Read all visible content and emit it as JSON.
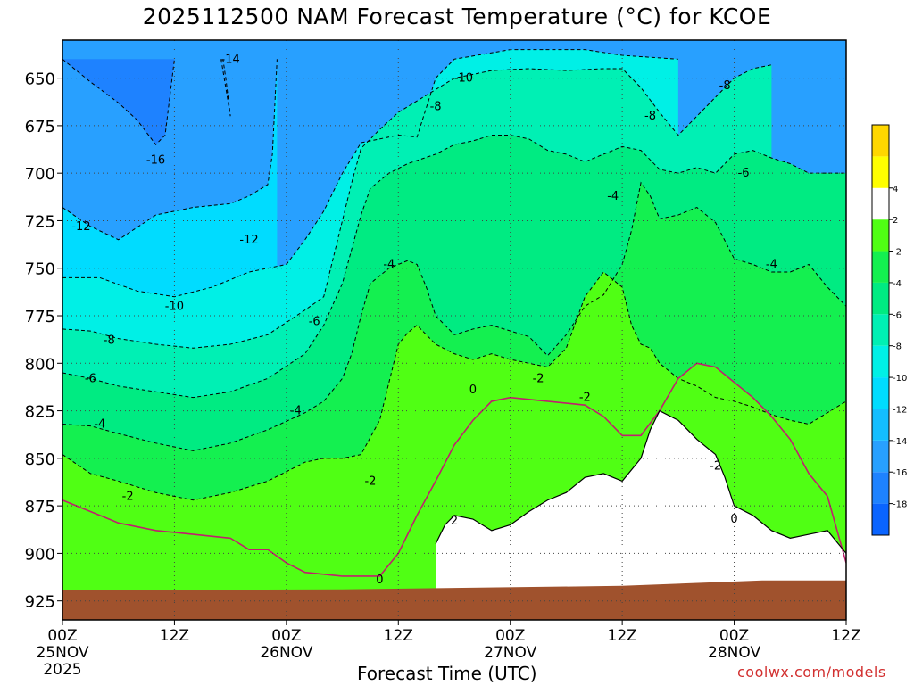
{
  "title": "2025112500 NAM Forecast Temperature (°C) for KCOE",
  "xlabel": "Forecast Time (UTC)",
  "credit": "coolwx.com/models",
  "chart_data": {
    "type": "contour",
    "title": "2025112500 NAM Forecast Temperature (°C) for KCOE",
    "xlabel": "Forecast Time (UTC)",
    "ylabel": "",
    "x_range_hours": [
      0,
      84
    ],
    "y_range_hPa": [
      630,
      935
    ],
    "y_axis_inverted": true,
    "grid": "dotted",
    "x_ticks": [
      {
        "hour": 0,
        "lines": [
          "00Z",
          "25NOV",
          "2025"
        ]
      },
      {
        "hour": 12,
        "lines": [
          "12Z"
        ]
      },
      {
        "hour": 24,
        "lines": [
          "00Z",
          "26NOV"
        ]
      },
      {
        "hour": 36,
        "lines": [
          "12Z"
        ]
      },
      {
        "hour": 48,
        "lines": [
          "00Z",
          "27NOV"
        ]
      },
      {
        "hour": 60,
        "lines": [
          "12Z"
        ]
      },
      {
        "hour": 72,
        "lines": [
          "00Z",
          "28NOV"
        ]
      },
      {
        "hour": 84,
        "lines": [
          "12Z"
        ]
      }
    ],
    "y_ticks": [
      650,
      675,
      700,
      725,
      750,
      775,
      800,
      825,
      850,
      875,
      900,
      925
    ],
    "colorbar": {
      "placement": "right",
      "levels": [
        -20,
        -18,
        -16,
        -14,
        -12,
        -10,
        -8,
        -6,
        -4,
        -2,
        2,
        4,
        6
      ],
      "colors": [
        "#0a64ff",
        "#1e82ff",
        "#28a0ff",
        "#14beff",
        "#00dcff",
        "#00f0e6",
        "#00f0b4",
        "#00eb82",
        "#14f050",
        "#50ff14",
        "#ffffff",
        "#ffff00",
        "#ffd700"
      ],
      "tick_labels": [
        "-18",
        "-16",
        "-14",
        "-12",
        "-10",
        "-8",
        "-6",
        "-4",
        "-2",
        "2",
        "4"
      ]
    },
    "ground_color": "#a0522d",
    "contours": [
      {
        "value": -14,
        "points": [
          [
            17,
            640
          ],
          [
            17.5,
            655
          ],
          [
            18,
            670
          ],
          [
            17.5,
            650
          ],
          [
            17.2,
            640
          ]
        ]
      },
      {
        "value": -16,
        "points": [
          [
            0,
            640
          ],
          [
            3,
            652
          ],
          [
            6,
            663
          ],
          [
            8,
            672
          ],
          [
            10,
            685
          ],
          [
            11,
            680
          ],
          [
            11.5,
            660
          ],
          [
            12,
            640
          ]
        ]
      },
      {
        "value": -12,
        "points": [
          [
            0,
            718
          ],
          [
            3,
            728
          ],
          [
            6,
            735
          ],
          [
            10,
            722
          ],
          [
            14,
            718
          ],
          [
            18,
            716
          ],
          [
            20,
            712
          ],
          [
            22,
            706
          ],
          [
            22.5,
            690
          ],
          [
            23,
            640
          ]
        ]
      },
      {
        "value": -10,
        "points": [
          [
            0,
            755
          ],
          [
            4,
            755
          ],
          [
            8,
            762
          ],
          [
            12,
            765
          ],
          [
            16,
            760
          ],
          [
            20,
            752
          ],
          [
            24,
            748
          ],
          [
            26,
            735
          ],
          [
            28,
            720
          ],
          [
            30,
            700
          ],
          [
            32,
            684
          ],
          [
            36,
            680
          ],
          [
            38,
            681
          ],
          [
            40,
            650
          ],
          [
            42,
            640
          ],
          [
            48,
            635
          ],
          [
            56,
            635
          ],
          [
            60,
            638
          ],
          [
            66,
            640
          ]
        ]
      },
      {
        "value": -8,
        "points": [
          [
            0,
            782
          ],
          [
            3,
            783
          ],
          [
            6,
            787
          ],
          [
            10,
            790
          ],
          [
            14,
            792
          ],
          [
            18,
            790
          ],
          [
            22,
            785
          ],
          [
            26,
            772
          ],
          [
            28,
            765
          ],
          [
            29,
            745
          ],
          [
            30,
            725
          ],
          [
            31,
            705
          ],
          [
            32,
            687
          ],
          [
            34,
            677
          ],
          [
            36,
            668
          ],
          [
            38,
            662
          ],
          [
            40,
            656
          ],
          [
            42,
            650
          ],
          [
            44,
            648
          ],
          [
            46,
            646
          ],
          [
            50,
            645
          ],
          [
            54,
            646
          ],
          [
            58,
            645
          ],
          [
            60,
            645
          ],
          [
            62,
            655
          ],
          [
            64,
            668
          ],
          [
            66,
            680
          ],
          [
            68,
            670
          ],
          [
            70,
            660
          ],
          [
            72,
            650
          ],
          [
            74,
            645
          ],
          [
            76,
            643
          ]
        ]
      },
      {
        "value": -6,
        "points": [
          [
            0,
            805
          ],
          [
            3,
            808
          ],
          [
            6,
            812
          ],
          [
            10,
            815
          ],
          [
            14,
            818
          ],
          [
            18,
            815
          ],
          [
            22,
            808
          ],
          [
            26,
            795
          ],
          [
            28,
            780
          ],
          [
            30,
            758
          ],
          [
            31,
            740
          ],
          [
            32,
            722
          ],
          [
            33,
            708
          ],
          [
            35,
            700
          ],
          [
            37,
            695
          ],
          [
            40,
            690
          ],
          [
            42,
            685
          ],
          [
            44,
            683
          ],
          [
            46,
            680
          ],
          [
            48,
            680
          ],
          [
            50,
            682
          ],
          [
            52,
            688
          ],
          [
            54,
            690
          ],
          [
            56,
            694
          ],
          [
            58,
            690
          ],
          [
            60,
            686
          ],
          [
            62,
            688
          ],
          [
            64,
            698
          ],
          [
            66,
            700
          ],
          [
            68,
            697
          ],
          [
            70,
            700
          ],
          [
            72,
            690
          ],
          [
            74,
            688
          ],
          [
            76,
            692
          ],
          [
            78,
            695
          ],
          [
            80,
            700
          ],
          [
            82,
            700
          ],
          [
            84,
            700
          ]
        ]
      },
      {
        "value": -4,
        "points": [
          [
            0,
            832
          ],
          [
            3,
            833
          ],
          [
            6,
            837
          ],
          [
            10,
            842
          ],
          [
            14,
            846
          ],
          [
            18,
            842
          ],
          [
            22,
            835
          ],
          [
            26,
            826
          ],
          [
            28,
            820
          ],
          [
            30,
            808
          ],
          [
            31,
            795
          ],
          [
            32,
            775
          ],
          [
            33,
            758
          ],
          [
            35,
            750
          ],
          [
            37,
            746
          ],
          [
            38,
            748
          ],
          [
            39,
            760
          ],
          [
            40,
            775
          ],
          [
            42,
            785
          ],
          [
            44,
            782
          ],
          [
            46,
            780
          ],
          [
            48,
            783
          ],
          [
            50,
            786
          ],
          [
            52,
            796
          ],
          [
            54,
            785
          ],
          [
            56,
            770
          ],
          [
            58,
            764
          ],
          [
            60,
            748
          ],
          [
            61,
            730
          ],
          [
            62,
            705
          ],
          [
            63,
            712
          ],
          [
            64,
            724
          ],
          [
            66,
            722
          ],
          [
            68,
            718
          ],
          [
            70,
            726
          ],
          [
            72,
            745
          ],
          [
            74,
            748
          ],
          [
            76,
            752
          ],
          [
            78,
            752
          ],
          [
            80,
            748
          ],
          [
            82,
            760
          ],
          [
            84,
            770
          ]
        ]
      },
      {
        "value": -2,
        "points": [
          [
            0,
            848
          ],
          [
            3,
            858
          ],
          [
            6,
            862
          ],
          [
            10,
            868
          ],
          [
            14,
            872
          ],
          [
            18,
            868
          ],
          [
            22,
            862
          ],
          [
            26,
            852
          ],
          [
            28,
            850
          ],
          [
            30,
            850
          ],
          [
            32,
            848
          ],
          [
            34,
            830
          ],
          [
            35,
            810
          ],
          [
            36,
            790
          ],
          [
            37,
            784
          ],
          [
            38,
            780
          ],
          [
            40,
            790
          ],
          [
            42,
            795
          ],
          [
            44,
            798
          ],
          [
            46,
            795
          ],
          [
            48,
            798
          ],
          [
            50,
            800
          ],
          [
            52,
            802
          ],
          [
            54,
            792
          ],
          [
            56,
            765
          ],
          [
            58,
            752
          ],
          [
            60,
            760
          ],
          [
            61,
            780
          ],
          [
            62,
            790
          ],
          [
            63,
            792
          ],
          [
            64,
            800
          ],
          [
            66,
            808
          ],
          [
            68,
            812
          ],
          [
            70,
            818
          ],
          [
            72,
            820
          ],
          [
            74,
            823
          ],
          [
            76,
            827
          ],
          [
            78,
            830
          ],
          [
            80,
            832
          ],
          [
            82,
            826
          ],
          [
            84,
            820
          ]
        ]
      },
      {
        "value": 0,
        "points": [
          [
            0,
            872
          ],
          [
            3,
            878
          ],
          [
            6,
            884
          ],
          [
            10,
            888
          ],
          [
            14,
            890
          ],
          [
            18,
            892
          ],
          [
            20,
            898
          ],
          [
            22,
            898
          ],
          [
            24,
            905
          ],
          [
            26,
            910
          ],
          [
            30,
            912
          ],
          [
            34,
            912
          ],
          [
            36,
            900
          ],
          [
            38,
            880
          ],
          [
            40,
            862
          ],
          [
            42,
            843
          ],
          [
            44,
            830
          ],
          [
            46,
            820
          ],
          [
            48,
            818
          ],
          [
            52,
            820
          ],
          [
            56,
            822
          ],
          [
            58,
            828
          ],
          [
            60,
            838
          ],
          [
            62,
            838
          ],
          [
            64,
            825
          ],
          [
            66,
            808
          ],
          [
            68,
            800
          ],
          [
            70,
            802
          ],
          [
            72,
            810
          ],
          [
            74,
            818
          ],
          [
            76,
            828
          ],
          [
            78,
            840
          ],
          [
            80,
            858
          ],
          [
            82,
            870
          ],
          [
            84,
            905
          ]
        ]
      },
      {
        "value": 2,
        "points": [
          [
            40,
            895
          ],
          [
            41,
            885
          ],
          [
            42,
            880
          ],
          [
            44,
            882
          ],
          [
            46,
            888
          ],
          [
            48,
            885
          ],
          [
            50,
            878
          ],
          [
            52,
            872
          ],
          [
            54,
            868
          ],
          [
            56,
            860
          ],
          [
            58,
            858
          ],
          [
            60,
            862
          ],
          [
            62,
            850
          ],
          [
            63,
            835
          ],
          [
            64,
            825
          ],
          [
            66,
            830
          ],
          [
            68,
            840
          ],
          [
            70,
            848
          ],
          [
            71,
            860
          ],
          [
            72,
            875
          ],
          [
            74,
            880
          ],
          [
            76,
            888
          ],
          [
            78,
            892
          ],
          [
            80,
            890
          ],
          [
            82,
            888
          ],
          [
            84,
            900
          ]
        ]
      }
    ],
    "contour_labels": [
      {
        "text": "-14",
        "hour": 18,
        "pressure": 640
      },
      {
        "text": "-10",
        "hour": 43,
        "pressure": 650
      },
      {
        "text": "-8",
        "hour": 71,
        "pressure": 654
      },
      {
        "text": "-8",
        "hour": 40,
        "pressure": 665
      },
      {
        "text": "-8",
        "hour": 63,
        "pressure": 670
      },
      {
        "text": "-16",
        "hour": 10,
        "pressure": 693
      },
      {
        "text": "-6",
        "hour": 73,
        "pressure": 700
      },
      {
        "text": "-4",
        "hour": 59,
        "pressure": 712
      },
      {
        "text": "-12",
        "hour": 2,
        "pressure": 728
      },
      {
        "text": "-12",
        "hour": 20,
        "pressure": 735
      },
      {
        "text": "-4",
        "hour": 35,
        "pressure": 748
      },
      {
        "text": "-4",
        "hour": 76,
        "pressure": 748
      },
      {
        "text": "-10",
        "hour": 12,
        "pressure": 770
      },
      {
        "text": "-6",
        "hour": 27,
        "pressure": 778
      },
      {
        "text": "-8",
        "hour": 5,
        "pressure": 788
      },
      {
        "text": "-6",
        "hour": 3,
        "pressure": 808
      },
      {
        "text": "-2",
        "hour": 51,
        "pressure": 808
      },
      {
        "text": "0",
        "hour": 44,
        "pressure": 814
      },
      {
        "text": "-2",
        "hour": 56,
        "pressure": 818
      },
      {
        "text": "-4",
        "hour": 25,
        "pressure": 825
      },
      {
        "text": "-4",
        "hour": 4,
        "pressure": 832
      },
      {
        "text": "-2",
        "hour": 70,
        "pressure": 854
      },
      {
        "text": "-2",
        "hour": 33,
        "pressure": 862
      },
      {
        "text": "-2",
        "hour": 7,
        "pressure": 870
      },
      {
        "text": "0",
        "hour": 72,
        "pressure": 882
      },
      {
        "text": "2",
        "hour": 42,
        "pressure": 883
      },
      {
        "text": "0",
        "hour": 34,
        "pressure": 914
      }
    ]
  }
}
